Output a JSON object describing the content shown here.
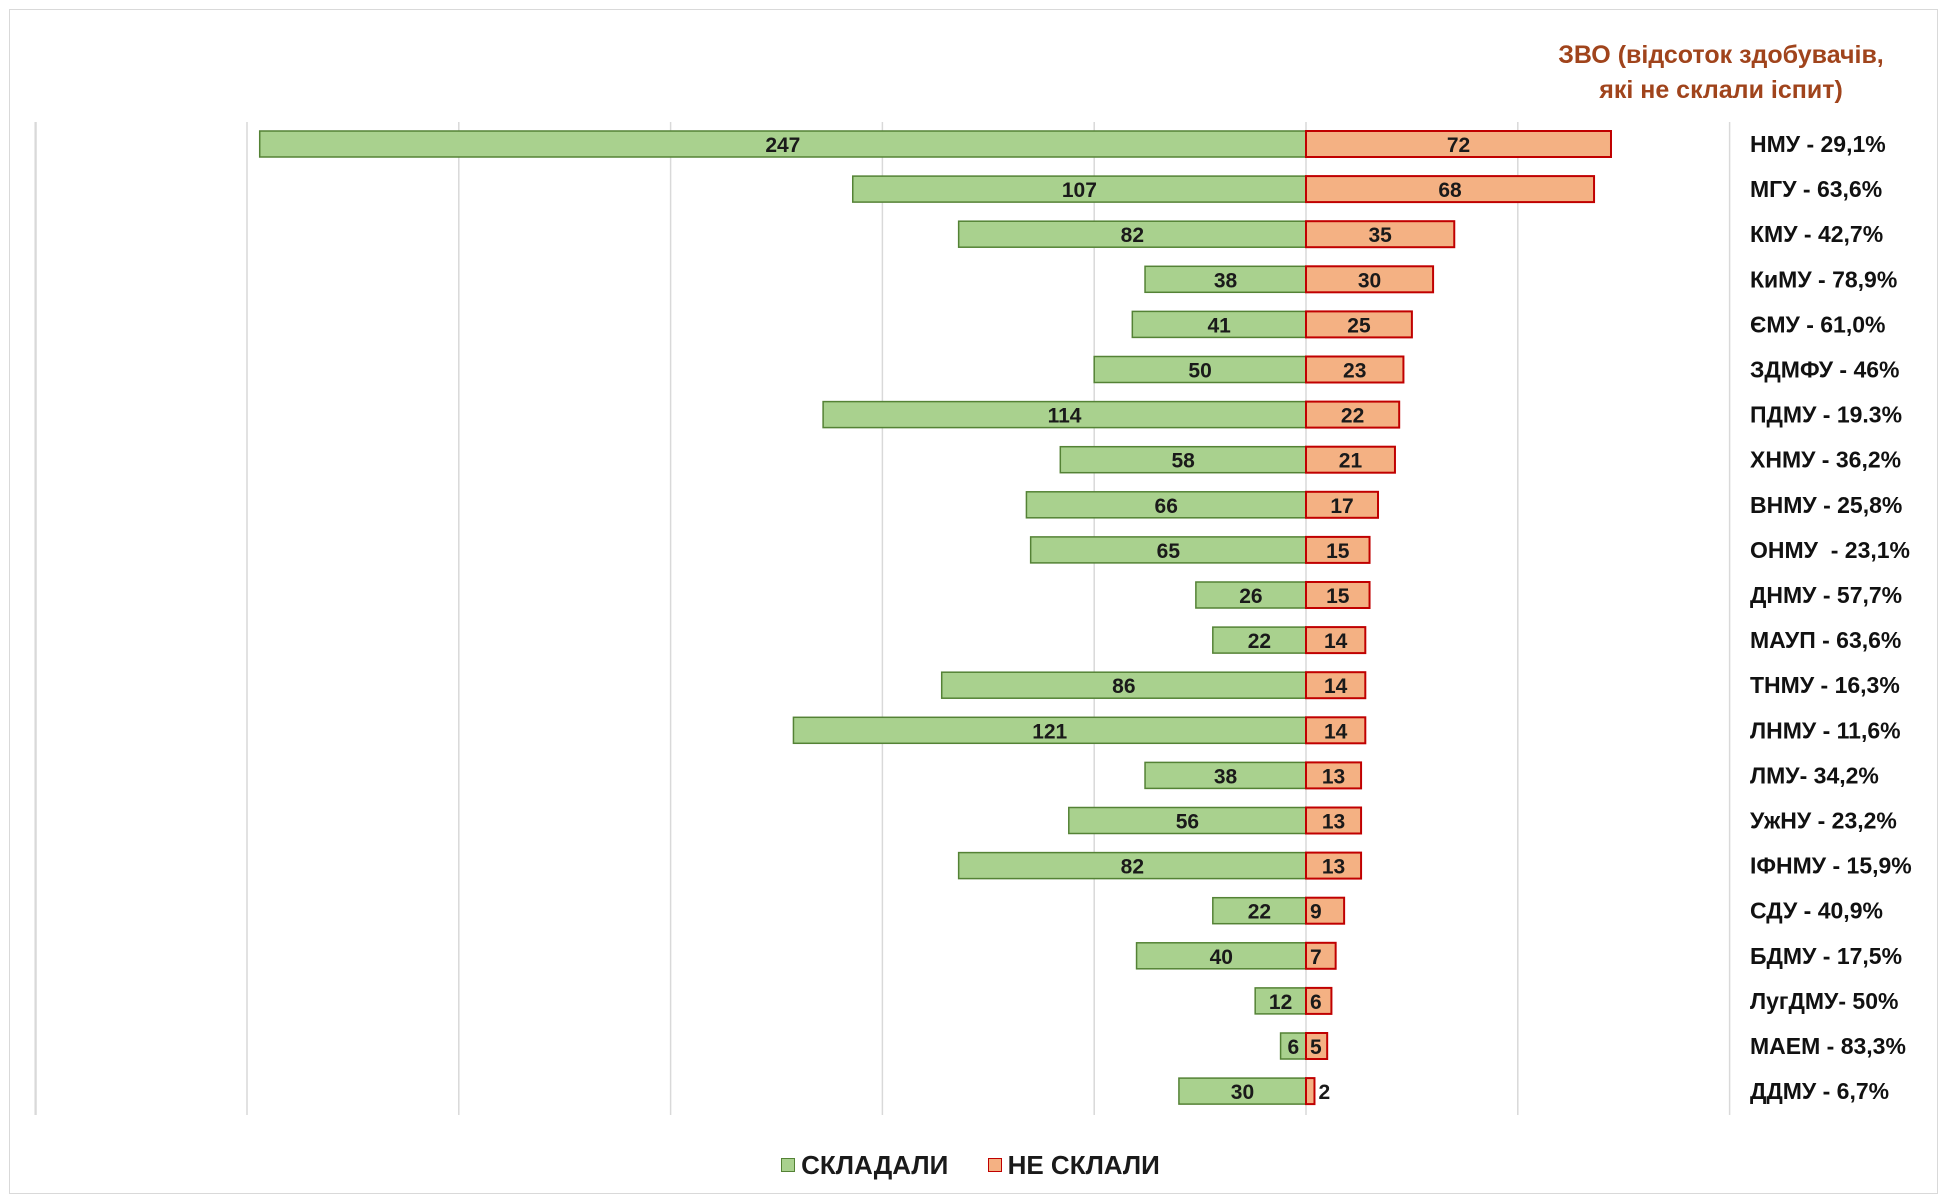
{
  "header": {
    "title_line1": "ЗВО (відсоток здобувачів,",
    "title_line2": "які не склали іспит)"
  },
  "legend": {
    "passed_label": "СКЛАДАЛИ",
    "failed_label": "НЕ СКЛАЛИ"
  },
  "colors": {
    "passed_fill": "#a9d18e",
    "passed_stroke": "#548235",
    "failed_fill": "#f4b183",
    "failed_stroke": "#c00000",
    "gridline": "#d9d9d9",
    "title": "#a0441c"
  },
  "chart_data": {
    "type": "bar",
    "orientation": "horizontal-diverging",
    "title": "ЗВО (відсоток здобувачів, які не склали іспит)",
    "categories": [
      "НМУ - 29,1%",
      "МГУ - 63,6%",
      "КМУ - 42,7%",
      "КиМУ - 78,9%",
      "ЄМУ - 61,0%",
      "ЗДМФУ - 46%",
      "ПДМУ - 19.3%",
      "ХНМУ - 36,2%",
      "ВНМУ - 25,8%",
      "ОНМУ  - 23,1%",
      "ДНМУ - 57,7%",
      "МАУП - 63,6%",
      "ТНМУ - 16,3%",
      "ЛНМУ - 11,6%",
      "ЛМУ- 34,2%",
      "УжНУ - 23,2%",
      "ІФНМУ - 15,9%",
      "СДУ - 40,9%",
      "БДМУ - 17,5%",
      "ЛугДМУ- 50%",
      "МАЕМ - 83,3%",
      "ДДМУ - 6,7%"
    ],
    "series": [
      {
        "name": "СКЛАДАЛИ",
        "values": [
          247,
          107,
          82,
          38,
          41,
          50,
          114,
          58,
          66,
          65,
          26,
          22,
          86,
          121,
          38,
          56,
          82,
          22,
          40,
          12,
          6,
          30
        ]
      },
      {
        "name": "НЕ СКЛАЛИ",
        "values": [
          72,
          68,
          35,
          30,
          25,
          23,
          22,
          21,
          17,
          15,
          15,
          14,
          14,
          14,
          13,
          13,
          13,
          9,
          7,
          6,
          5,
          2
        ]
      }
    ],
    "xlim": [
      -300,
      100
    ],
    "grid": true,
    "legend_position": "bottom"
  }
}
